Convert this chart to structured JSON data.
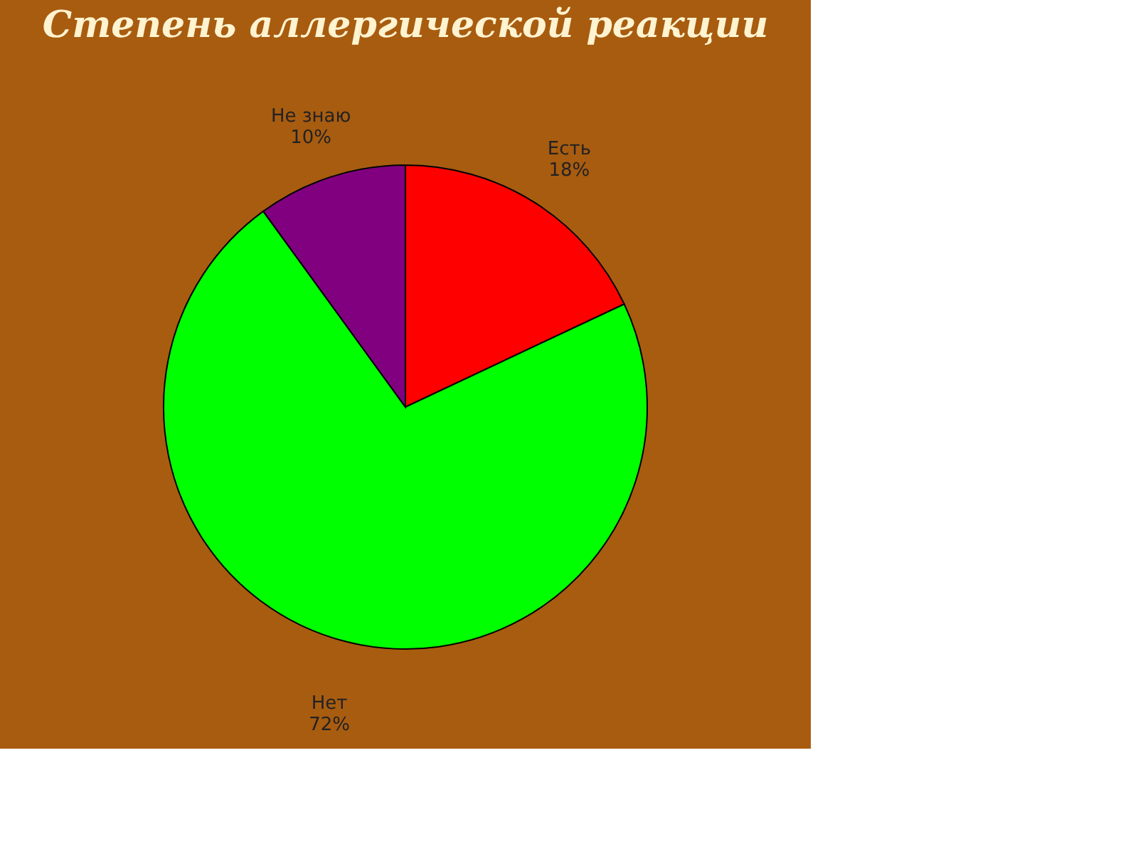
{
  "chart_data": {
    "type": "pie",
    "title": "Степень аллергической реакции",
    "categories": [
      "Есть",
      "Нет",
      "Не знаю"
    ],
    "values": [
      18,
      72,
      10
    ],
    "colors": [
      "#ff0000",
      "#00ff00",
      "#800080"
    ],
    "value_labels": [
      "18%",
      "72%",
      "10%"
    ],
    "legend": false
  }
}
